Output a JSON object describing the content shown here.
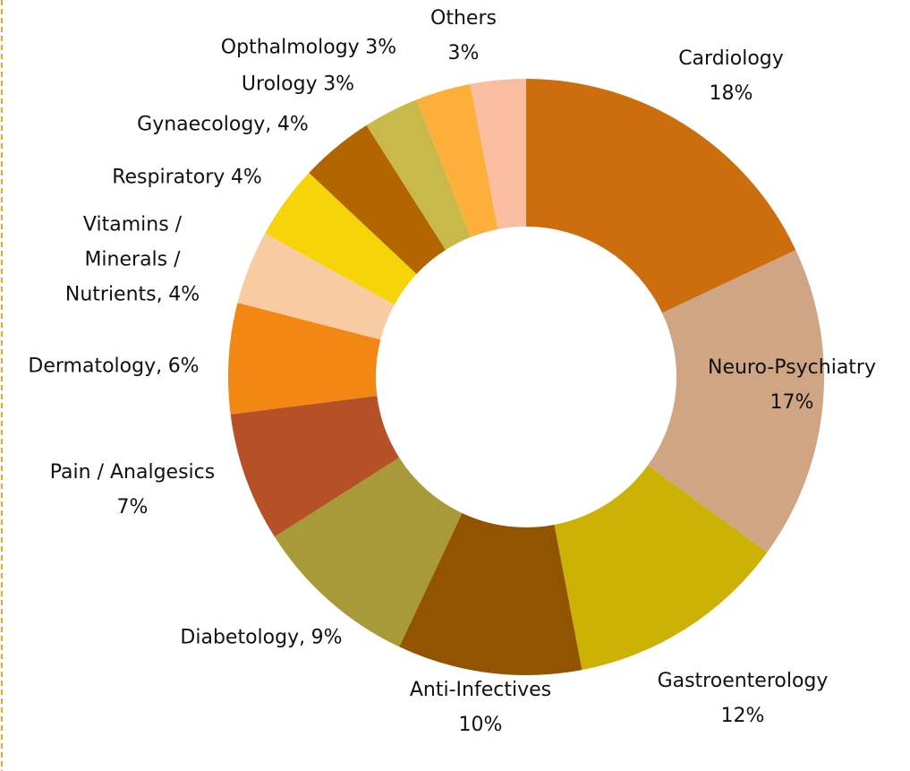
{
  "chart_data": {
    "type": "donut",
    "categories": [
      "Cardiology",
      "Neuro-Psychiatry",
      "Gastroenterology",
      "Anti-Infectives",
      "Diabetology,",
      "Pain / Analgesics",
      "Dermatology,",
      "Vitamins / Minerals / Nutrients,",
      "Respiratory",
      "Gynaecology,",
      "Urology",
      "Opthalmology",
      "Others"
    ],
    "values": [
      18,
      17,
      12,
      10,
      9,
      7,
      6,
      4,
      4,
      4,
      3,
      3,
      3
    ],
    "value_labels": [
      "18%",
      "17%",
      "12%",
      "10%",
      "9%",
      "7%",
      "6%",
      "4%",
      "4%",
      "4%",
      "3%",
      "3%",
      "3%"
    ],
    "colors": [
      "#cc6e0e",
      "#cfa584",
      "#cbb204",
      "#935400",
      "#a89a38",
      "#b55027",
      "#f28714",
      "#f9cba2",
      "#f5d40a",
      "#b36600",
      "#c9b94a",
      "#fdaf3c",
      "#f9bea0"
    ]
  }
}
